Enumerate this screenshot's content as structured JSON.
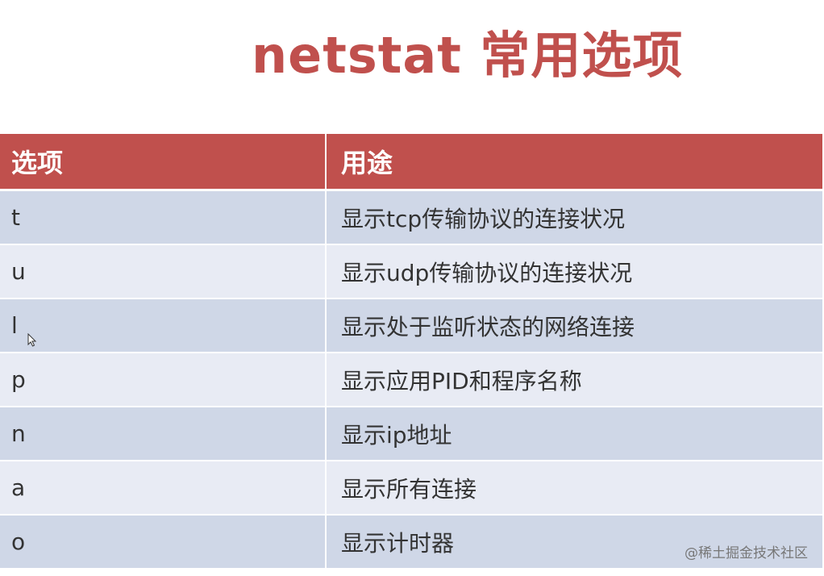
{
  "title": "netstat 常用选项",
  "table": {
    "headers": [
      "选项",
      "用途"
    ],
    "rows": [
      {
        "option": "t",
        "usage": "显示tcp传输协议的连接状况"
      },
      {
        "option": "u",
        "usage": "显示udp传输协议的连接状况"
      },
      {
        "option": "l",
        "usage": "显示处于监听状态的网络连接"
      },
      {
        "option": "p",
        "usage": "显示应用PID和程序名称"
      },
      {
        "option": "n",
        "usage": "显示ip地址"
      },
      {
        "option": "a",
        "usage": "显示所有连接"
      },
      {
        "option": "o",
        "usage": "显示计时器"
      }
    ]
  },
  "watermark": "@稀土掘金技术社区",
  "colors": {
    "accent": "#c0504d",
    "row_odd": "#cfd7e7",
    "row_even": "#e8ebf4"
  }
}
